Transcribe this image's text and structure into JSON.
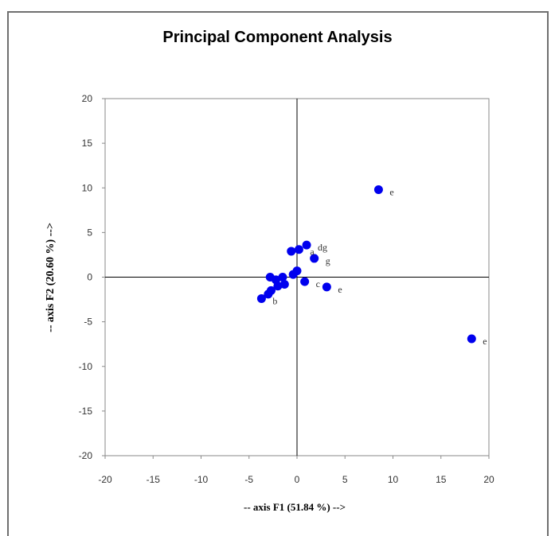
{
  "chart_data": {
    "type": "scatter",
    "title": "Principal Component Analysis",
    "xlabel": "-- axis F1 (51.84 %) -->",
    "ylabel": "-- axis F2 (20.60 %) -->",
    "xlim": [
      -20,
      20
    ],
    "ylim": [
      -20,
      20
    ],
    "xticks": [
      -20,
      -15,
      -10,
      -5,
      0,
      5,
      10,
      15,
      20
    ],
    "yticks": [
      20,
      15,
      10,
      5,
      0,
      -5,
      -10,
      -15,
      -20
    ],
    "grid": false,
    "point_color": "#0000ee",
    "points": [
      {
        "x": 8.5,
        "y": 9.8,
        "label": "e"
      },
      {
        "x": 18.2,
        "y": -6.9,
        "label": "e"
      },
      {
        "x": 3.1,
        "y": -1.1,
        "label": "e"
      },
      {
        "x": 1.8,
        "y": 2.1,
        "label": "g"
      },
      {
        "x": 1.0,
        "y": 3.6,
        "label": "dg"
      },
      {
        "x": 0.2,
        "y": 3.1,
        "label": "a"
      },
      {
        "x": -0.6,
        "y": 2.9,
        "label": ""
      },
      {
        "x": 0.0,
        "y": 0.7,
        "label": ""
      },
      {
        "x": -0.4,
        "y": 0.3,
        "label": ""
      },
      {
        "x": 0.8,
        "y": -0.5,
        "label": "c"
      },
      {
        "x": -1.5,
        "y": 0.0,
        "label": ""
      },
      {
        "x": -2.8,
        "y": 0.0,
        "label": ""
      },
      {
        "x": -2.2,
        "y": -0.3,
        "label": ""
      },
      {
        "x": -1.3,
        "y": -0.8,
        "label": ""
      },
      {
        "x": -2.0,
        "y": -1.0,
        "label": ""
      },
      {
        "x": -2.7,
        "y": -1.5,
        "label": ""
      },
      {
        "x": -3.0,
        "y": -1.9,
        "label": ""
      },
      {
        "x": -3.7,
        "y": -2.4,
        "label": "b"
      }
    ]
  }
}
